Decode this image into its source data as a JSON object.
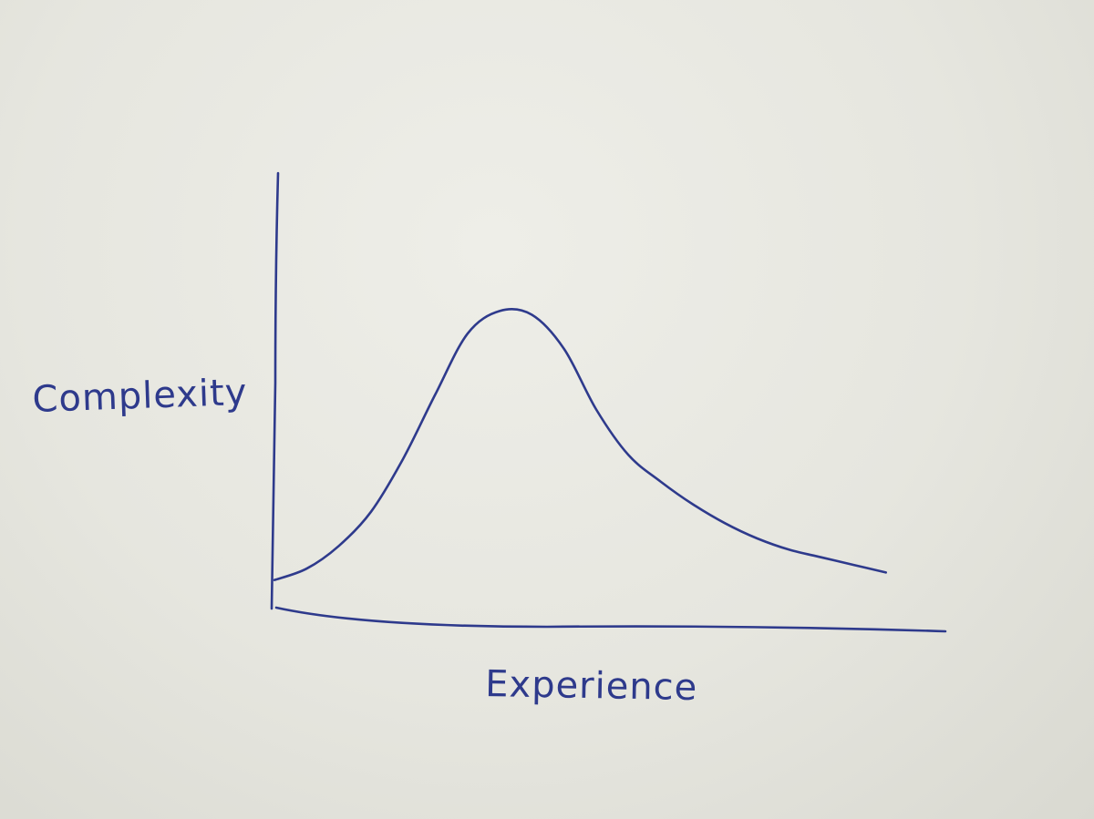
{
  "chart_data": {
    "type": "line",
    "title": "",
    "xlabel": "Experience",
    "ylabel": "Complexity",
    "xlim": [
      0,
      100
    ],
    "ylim": [
      0,
      100
    ],
    "grid": false,
    "hand_drawn": true,
    "ink_color": "#2e3a8c",
    "paper_color": "#e6e6df",
    "series": [
      {
        "x": [
          0,
          5,
          10,
          15,
          20,
          25,
          30,
          35,
          40,
          45,
          50,
          55,
          60,
          65,
          70,
          75,
          80,
          85,
          90,
          95
        ],
        "values": [
          8,
          11,
          17,
          26,
          40,
          57,
          73,
          79,
          78,
          69,
          53,
          41,
          34,
          28,
          23,
          19,
          16,
          14,
          12,
          10
        ]
      }
    ]
  }
}
